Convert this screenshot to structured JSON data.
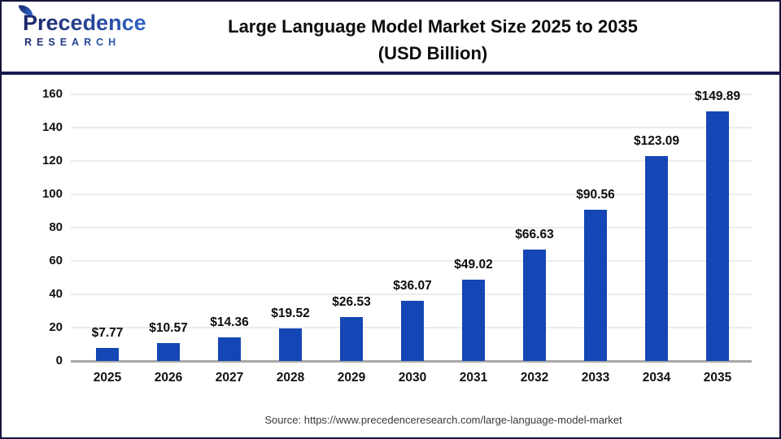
{
  "logo": {
    "title": "Precedence",
    "subtitle": "RESEARCH"
  },
  "header": {
    "title_line1": "Large Language Model Market Size 2025 to 2035",
    "title_line2": "(USD Billion)"
  },
  "chart_data": {
    "type": "bar",
    "title": "Large Language Model Market Size 2025 to 2035 (USD Billion)",
    "categories": [
      "2025",
      "2026",
      "2027",
      "2028",
      "2029",
      "2030",
      "2031",
      "2032",
      "2033",
      "2034",
      "2035"
    ],
    "values": [
      7.77,
      10.57,
      14.36,
      19.52,
      26.53,
      36.07,
      49.02,
      66.63,
      90.56,
      123.09,
      149.89
    ],
    "value_labels": [
      "$7.77",
      "$10.57",
      "$14.36",
      "$19.52",
      "$26.53",
      "$36.07",
      "$49.02",
      "$66.63",
      "$90.56",
      "$123.09",
      "$149.89"
    ],
    "yticks": [
      0,
      20,
      40,
      60,
      80,
      100,
      120,
      140,
      160
    ],
    "ylim": [
      0,
      160
    ],
    "xlabel": "",
    "ylabel": "",
    "grid": true,
    "legend": false,
    "bar_color": "#1546b5",
    "gridline_color": "#ececec",
    "axis_color": "#a8a8a8"
  },
  "footer": {
    "source": "Source: https://www.precedenceresearch.com/large-language-model-market"
  }
}
